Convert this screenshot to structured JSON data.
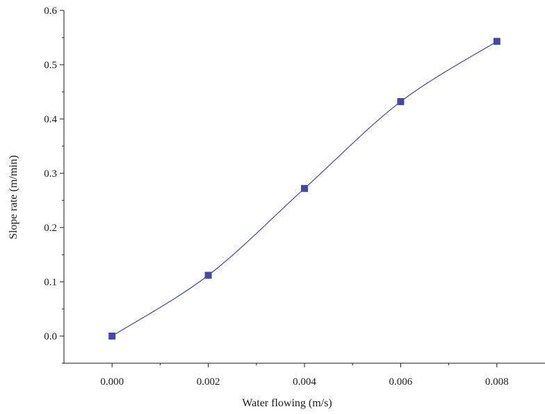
{
  "chart_data": {
    "type": "line",
    "title": "",
    "xlabel": "Water flowing (m/s)",
    "ylabel": "Slope rate (m/min)",
    "x": [
      0.0,
      0.002,
      0.004,
      0.006,
      0.008
    ],
    "series": [
      {
        "values": [
          0.0,
          0.112,
          0.272,
          0.432,
          0.543
        ]
      }
    ],
    "xlim": [
      -0.001,
      0.009
    ],
    "ylim": [
      -0.05,
      0.6
    ],
    "xticks": [
      0.0,
      0.002,
      0.004,
      0.006,
      0.008
    ],
    "xtick_labels": [
      "0.000",
      "0.002",
      "0.004",
      "0.006",
      "0.008"
    ],
    "yticks": [
      0.0,
      0.1,
      0.2,
      0.3,
      0.4,
      0.5,
      0.6
    ],
    "ytick_labels": [
      "0.0",
      "0.1",
      "0.2",
      "0.3",
      "0.4",
      "0.5",
      "0.6"
    ],
    "grid": false,
    "marker": "square",
    "smooth": true,
    "colors": {
      "line": "#3f43a8",
      "marker": "#4347b0",
      "axis": "#1a1a1a"
    }
  }
}
